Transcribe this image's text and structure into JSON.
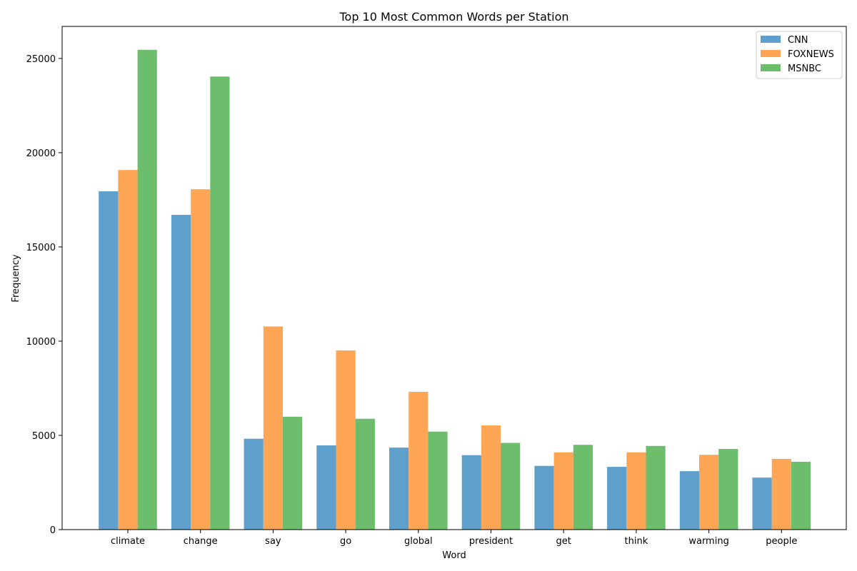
{
  "chart_data": {
    "type": "bar",
    "title": "Top 10 Most Common Words per Station",
    "xlabel": "Word",
    "ylabel": "Frequency",
    "ylim": [
      0,
      26700
    ],
    "yticks": [
      0,
      5000,
      10000,
      15000,
      20000,
      25000
    ],
    "categories": [
      "climate",
      "change",
      "say",
      "go",
      "global",
      "president",
      "get",
      "think",
      "warming",
      "people"
    ],
    "series": [
      {
        "name": "CNN",
        "color": "#5f9fcc",
        "values": [
          17950,
          16700,
          4820,
          4470,
          4350,
          3950,
          3380,
          3330,
          3100,
          2760
        ]
      },
      {
        "name": "FOXNEWS",
        "color": "#fea556",
        "values": [
          19080,
          18060,
          10780,
          9510,
          7310,
          5530,
          4100,
          4100,
          3970,
          3750
        ]
      },
      {
        "name": "MSNBC",
        "color": "#6cbd6c",
        "values": [
          25460,
          24040,
          5990,
          5880,
          5200,
          4600,
          4500,
          4440,
          4280,
          3600
        ]
      }
    ],
    "legend": "top-right",
    "grid": false
  }
}
